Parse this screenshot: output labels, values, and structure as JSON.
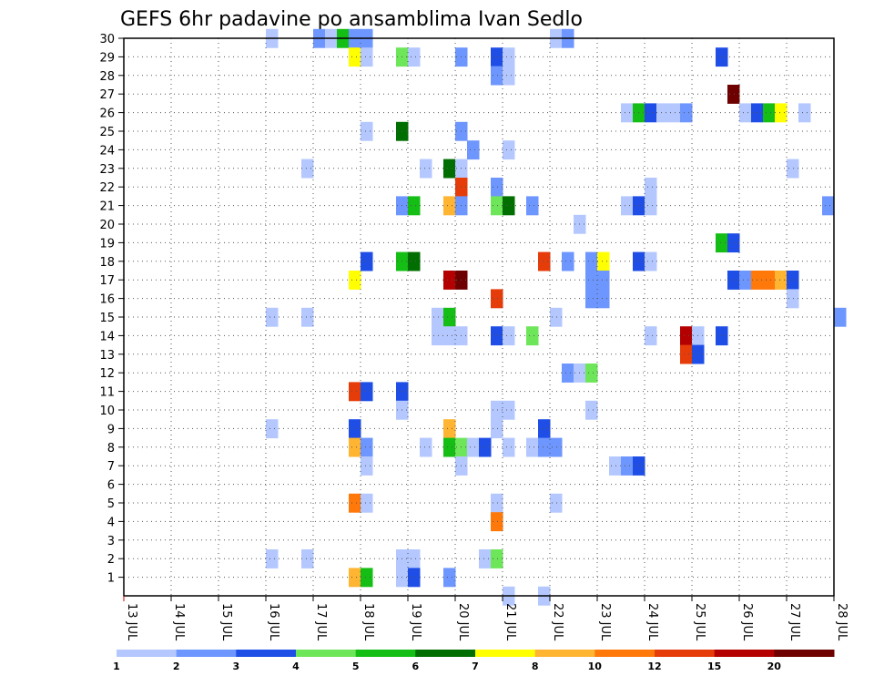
{
  "chart_data": {
    "type": "heatmap",
    "title": "GEFS 6hr padavine po ansamblima Ivan Sedlo",
    "xlabel": "",
    "ylabel": "",
    "x_tick_labels": [
      "13 JUL",
      "14 JUL",
      "15 JUL",
      "16 JUL",
      "17 JUL",
      "18 JUL",
      "19 JUL",
      "20 JUL",
      "21 JUL",
      "22 JUL",
      "23 JUL",
      "24 JUL",
      "25 JUL",
      "26 JUL",
      "27 JUL",
      "28 JUL"
    ],
    "xlim_days": [
      13,
      28
    ],
    "y_tick_labels": [
      1,
      2,
      3,
      4,
      5,
      6,
      7,
      8,
      9,
      10,
      11,
      12,
      13,
      14,
      15,
      16,
      17,
      18,
      19,
      20,
      21,
      22,
      23,
      24,
      25,
      26,
      27,
      28,
      29,
      30
    ],
    "ylim": [
      0,
      30
    ],
    "time_step_hours": 6,
    "grid": true,
    "colorbar": {
      "levels": [
        "1",
        "2",
        "3",
        "4",
        "5",
        "6",
        "7",
        "8",
        "10",
        "12",
        "15",
        "20"
      ],
      "colors": [
        "#b4c8ff",
        "#6e96ff",
        "#1e4ee6",
        "#6ee65a",
        "#14be14",
        "#006e00",
        "#ffff00",
        "#ffb432",
        "#ff780a",
        "#e63c0a",
        "#b40000",
        "#6e0000"
      ]
    },
    "cells": [
      {
        "m": 30,
        "t": [
          [
            16.0,
            1
          ]
        ]
      },
      {
        "m": 30,
        "t": [
          [
            17.0,
            2
          ],
          [
            17.25,
            1
          ],
          [
            17.5,
            5
          ],
          [
            17.75,
            2
          ],
          [
            18.0,
            2
          ],
          [
            22.0,
            1
          ],
          [
            22.25,
            2
          ]
        ]
      },
      {
        "m": 29,
        "t": [
          [
            17.75,
            7
          ],
          [
            18.0,
            1
          ],
          [
            18.75,
            4
          ],
          [
            19.0,
            1
          ],
          [
            20.0,
            2
          ],
          [
            20.75,
            3
          ],
          [
            21.0,
            1
          ],
          [
            25.5,
            3
          ]
        ]
      },
      {
        "m": 28,
        "t": [
          [
            20.75,
            2
          ],
          [
            21.0,
            1
          ]
        ]
      },
      {
        "m": 27,
        "t": [
          [
            25.75,
            12
          ]
        ]
      },
      {
        "m": 26,
        "t": [
          [
            23.5,
            1
          ],
          [
            23.75,
            5
          ],
          [
            24.0,
            3
          ],
          [
            24.25,
            1
          ],
          [
            24.5,
            1
          ],
          [
            24.75,
            2
          ],
          [
            26.0,
            1
          ],
          [
            26.25,
            3
          ],
          [
            26.5,
            5
          ],
          [
            26.75,
            7
          ],
          [
            27.25,
            1
          ]
        ]
      },
      {
        "m": 25,
        "t": [
          [
            18.0,
            1
          ],
          [
            18.75,
            6
          ],
          [
            20.0,
            2
          ]
        ]
      },
      {
        "m": 24,
        "t": [
          [
            20.25,
            2
          ],
          [
            21.0,
            1
          ]
        ]
      },
      {
        "m": 23,
        "t": [
          [
            16.75,
            1
          ],
          [
            19.25,
            1
          ],
          [
            19.75,
            6
          ],
          [
            20.0,
            1
          ],
          [
            27.0,
            1
          ]
        ]
      },
      {
        "m": 22,
        "t": [
          [
            20.0,
            10
          ],
          [
            20.75,
            2
          ],
          [
            24.0,
            1
          ]
        ]
      },
      {
        "m": 21,
        "t": [
          [
            18.75,
            2
          ],
          [
            19.0,
            5
          ],
          [
            19.75,
            8
          ],
          [
            20.0,
            2
          ],
          [
            20.75,
            4
          ],
          [
            21.0,
            6
          ],
          [
            21.5,
            2
          ],
          [
            23.5,
            1
          ],
          [
            23.75,
            3
          ],
          [
            24.0,
            1
          ],
          [
            27.75,
            2
          ]
        ]
      },
      {
        "m": 20,
        "t": [
          [
            22.5,
            1
          ]
        ]
      },
      {
        "m": 19,
        "t": [
          [
            25.5,
            5
          ],
          [
            25.75,
            3
          ]
        ]
      },
      {
        "m": 18,
        "t": [
          [
            18.0,
            3
          ],
          [
            18.75,
            5
          ],
          [
            19.0,
            6
          ],
          [
            21.75,
            10
          ],
          [
            22.25,
            2
          ],
          [
            22.75,
            2
          ],
          [
            23.0,
            7
          ],
          [
            23.75,
            3
          ],
          [
            24.0,
            1
          ]
        ]
      },
      {
        "m": 17,
        "t": [
          [
            17.75,
            7
          ],
          [
            19.75,
            11
          ],
          [
            20.0,
            12
          ],
          [
            22.75,
            2
          ],
          [
            23.0,
            2
          ],
          [
            25.75,
            3
          ],
          [
            26.0,
            2
          ],
          [
            26.25,
            9
          ],
          [
            26.5,
            9
          ],
          [
            26.75,
            8
          ],
          [
            27.0,
            3
          ]
        ]
      },
      {
        "m": 16,
        "t": [
          [
            22.75,
            2
          ],
          [
            23.0,
            2
          ],
          [
            20.75,
            10
          ],
          [
            27.0,
            1
          ]
        ]
      },
      {
        "m": 15,
        "t": [
          [
            16.0,
            1
          ],
          [
            16.75,
            1
          ],
          [
            19.5,
            1
          ],
          [
            19.75,
            5
          ],
          [
            22.0,
            1
          ],
          [
            28.0,
            2
          ]
        ]
      },
      {
        "m": 14,
        "t": [
          [
            19.5,
            1
          ],
          [
            19.75,
            1
          ],
          [
            20.0,
            1
          ],
          [
            20.75,
            3
          ],
          [
            21.0,
            1
          ],
          [
            21.5,
            4
          ],
          [
            24.0,
            1
          ],
          [
            24.75,
            11
          ],
          [
            25.0,
            1
          ],
          [
            25.5,
            3
          ]
        ]
      },
      {
        "m": 13,
        "t": [
          [
            24.75,
            10
          ],
          [
            25.0,
            3
          ]
        ]
      },
      {
        "m": 12,
        "t": [
          [
            22.25,
            2
          ],
          [
            22.5,
            1
          ],
          [
            22.75,
            4
          ]
        ]
      },
      {
        "m": 11,
        "t": [
          [
            17.75,
            10
          ],
          [
            18.0,
            3
          ],
          [
            18.75,
            3
          ]
        ]
      },
      {
        "m": 10,
        "t": [
          [
            18.75,
            1
          ],
          [
            20.75,
            1
          ],
          [
            21.0,
            1
          ],
          [
            22.75,
            1
          ]
        ]
      },
      {
        "m": 9,
        "t": [
          [
            16.0,
            1
          ],
          [
            17.75,
            3
          ],
          [
            19.75,
            8
          ],
          [
            20.75,
            1
          ],
          [
            21.75,
            3
          ]
        ]
      },
      {
        "m": 8,
        "t": [
          [
            17.75,
            8
          ],
          [
            18.0,
            2
          ],
          [
            19.25,
            1
          ],
          [
            19.75,
            5
          ],
          [
            20.0,
            4
          ],
          [
            20.25,
            1
          ],
          [
            20.5,
            3
          ],
          [
            21.0,
            1
          ],
          [
            21.5,
            1
          ],
          [
            21.75,
            2
          ],
          [
            22.0,
            2
          ]
        ]
      },
      {
        "m": 7,
        "t": [
          [
            18.0,
            1
          ],
          [
            20.0,
            1
          ],
          [
            23.25,
            1
          ],
          [
            23.5,
            2
          ],
          [
            23.75,
            3
          ]
        ]
      },
      {
        "m": 5,
        "t": [
          [
            17.75,
            9
          ],
          [
            18.0,
            1
          ],
          [
            20.75,
            1
          ],
          [
            22.0,
            1
          ]
        ]
      },
      {
        "m": 4,
        "t": [
          [
            20.75,
            9
          ]
        ]
      },
      {
        "m": 2,
        "t": [
          [
            16.0,
            1
          ],
          [
            16.75,
            1
          ],
          [
            18.75,
            1
          ],
          [
            19.0,
            1
          ],
          [
            20.5,
            1
          ],
          [
            20.75,
            4
          ]
        ]
      },
      {
        "m": 1,
        "t": [
          [
            17.75,
            8
          ],
          [
            18.0,
            5
          ],
          [
            18.75,
            1
          ],
          [
            19.0,
            3
          ],
          [
            19.75,
            2
          ]
        ]
      },
      {
        "m": 0,
        "t": [
          [
            21.0,
            1
          ],
          [
            21.75,
            1
          ]
        ]
      }
    ]
  }
}
